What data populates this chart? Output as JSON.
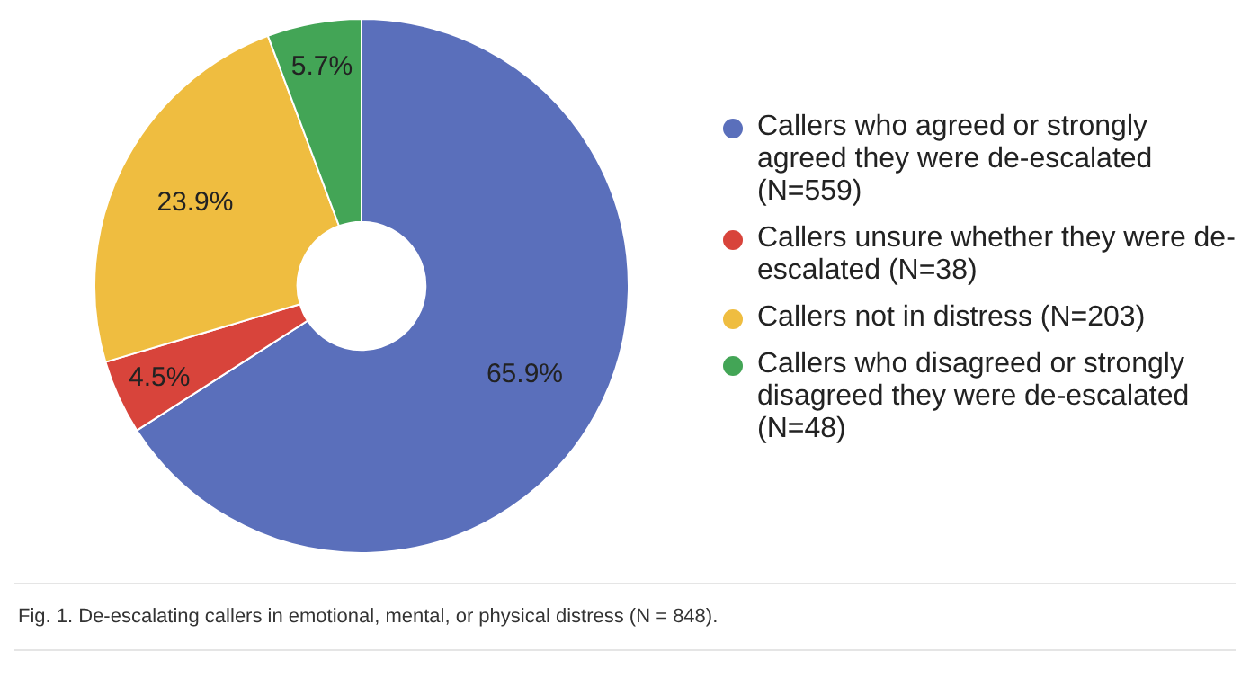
{
  "chart_data": {
    "type": "donut",
    "categories": [
      "Callers who agreed or strongly agreed they were de-escalated (N=559)",
      "Callers unsure whether they were de-escalated (N=38)",
      "Callers not in distress (N=203)",
      "Callers who disagreed or strongly disagreed they were de-escalated (N=48)"
    ],
    "values": [
      65.9,
      4.5,
      23.9,
      5.7
    ],
    "value_labels": [
      "65.9%",
      "4.5%",
      "23.9%",
      "5.7%"
    ],
    "colors": [
      "#5a6fbb",
      "#d8443b",
      "#efbd40",
      "#43a556"
    ],
    "legend": "right",
    "annotations": [
      "Fig. 1. De-escalating callers in emotional, mental, or physical distress (N = 848)."
    ]
  }
}
